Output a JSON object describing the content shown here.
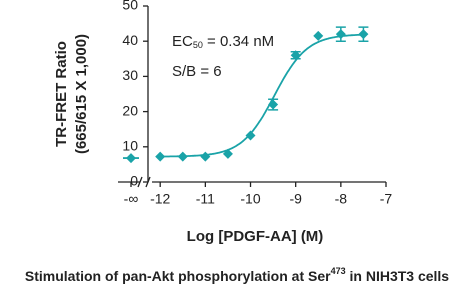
{
  "chart_data": {
    "type": "scatter",
    "y_label_lines": [
      "TR-FRET Ratio",
      "(665/615 X 1,000)"
    ],
    "x_label": "Log [PDGF-AA] (M)",
    "annotations": [
      {
        "text": "EC",
        "sub": "50",
        "rest": " = 0.34 nM"
      },
      {
        "text": "S/B = 6"
      }
    ],
    "caption": {
      "text": "Stimulation of pan-Akt phosphorylation at Ser",
      "sup": "473",
      "rest": " in NIH3T3 cells"
    },
    "color": "#1aa3a8",
    "zero_point": {
      "label": "-∞",
      "value": 6.8
    },
    "x": [
      -12,
      -11.5,
      -11,
      -10.5,
      -10,
      -9.5,
      -9,
      -8.5,
      -8,
      -7.5
    ],
    "values": [
      7.2,
      7.2,
      7.2,
      8,
      13.2,
      22,
      36,
      41.5,
      42,
      42
    ],
    "errors": [
      null,
      null,
      null,
      null,
      null,
      1.5,
      1,
      null,
      2,
      2
    ],
    "fit": {
      "bottom": 7.2,
      "top": 42,
      "log_ec50": -9.47,
      "hill": 1.2
    },
    "xlim": [
      -12.27,
      -7
    ],
    "xticks": [
      -12,
      -11,
      -10,
      -9,
      -8,
      -7
    ],
    "ylim": [
      0,
      50
    ],
    "yticks": [
      0,
      10,
      20,
      30,
      40,
      50
    ]
  }
}
